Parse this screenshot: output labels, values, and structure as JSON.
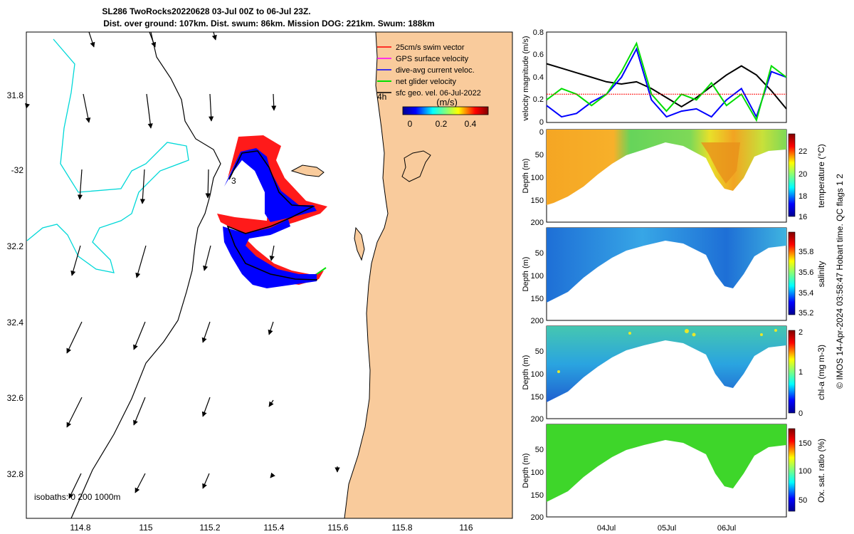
{
  "figure": {
    "title_line1": "SL286 TwoRocks20220628 03-Jul 00Z to 06-Jul 23Z.",
    "title_line2": "Dist. over ground: 107km. Dist. swum: 86km. Mission DOG: 221km. Swum: 188km",
    "footer": "© IMOS 14-Apr-2024 03:58:47 Hobart time. QC flags 1  2"
  },
  "map": {
    "lon_ticks": [
      "114.8",
      "115",
      "115.2",
      "115.4",
      "115.6",
      "115.8",
      "116"
    ],
    "lat_ticks": [
      "31.8",
      "-32",
      "32.2",
      "32.4",
      "32.6",
      "32.8"
    ],
    "isobaths_label": "isobaths: 0   200  1000m",
    "label_3": "3",
    "label_4h": "4h",
    "legend": [
      {
        "label": "25cm/s swim vector",
        "color": "#ff0000"
      },
      {
        "label": "GPS surface velocity",
        "color": "#ff00ff"
      },
      {
        "label": "dive-avg current veloc.",
        "color": "#0000ff"
      },
      {
        "label": "net glider velocity",
        "color": "#00e000"
      },
      {
        "label": "sfc geo. vel. 06-Jul-2022",
        "color": "#000000"
      }
    ],
    "colorbar_unit": "(m/s)",
    "colorbar_ticks": [
      "0",
      "0.2",
      "0.4"
    ]
  },
  "chart_data": [
    {
      "type": "line",
      "ylabel": "velocity magnitude (m/s)",
      "ylim": [
        0,
        0.8
      ],
      "yticks": [
        "0",
        "0.2",
        "0.4",
        "0.6",
        "0.8"
      ],
      "series": [
        {
          "color": "#000000",
          "values": [
            0.52,
            0.48,
            0.44,
            0.4,
            0.36,
            0.34,
            0.36,
            0.3,
            0.22,
            0.14,
            0.22,
            0.32,
            0.42,
            0.5,
            0.42,
            0.28,
            0.12
          ]
        },
        {
          "color": "#0000ff",
          "values": [
            0.15,
            0.05,
            0.08,
            0.18,
            0.25,
            0.4,
            0.65,
            0.2,
            0.05,
            0.1,
            0.12,
            0.05,
            0.2,
            0.3,
            0.05,
            0.45,
            0.4
          ]
        },
        {
          "color": "#00dd00",
          "values": [
            0.2,
            0.3,
            0.25,
            0.15,
            0.25,
            0.45,
            0.7,
            0.25,
            0.1,
            0.25,
            0.2,
            0.35,
            0.15,
            0.25,
            0.02,
            0.5,
            0.4
          ]
        },
        {
          "color": "#ff0000",
          "values": [
            0.25,
            0.25,
            0.25,
            0.25,
            0.25,
            0.25,
            0.25,
            0.25,
            0.25,
            0.25,
            0.25,
            0.25,
            0.25,
            0.25,
            0.25,
            0.25,
            0.25
          ]
        }
      ]
    },
    {
      "type": "heatmap",
      "ylabel": "Depth (m)",
      "yticks": [
        "0",
        "50",
        "100",
        "150",
        "200"
      ],
      "clabel": "temperature (°C)",
      "cticks": [
        "16",
        "18",
        "20",
        "22"
      ]
    },
    {
      "type": "heatmap",
      "ylabel": "Depth (m)",
      "yticks": [
        "50",
        "100",
        "150",
        "200"
      ],
      "clabel": "salinity",
      "cticks": [
        "35.2",
        "35.4",
        "35.6",
        "35.8"
      ]
    },
    {
      "type": "heatmap",
      "ylabel": "Depth (m)",
      "yticks": [
        "50",
        "100",
        "150",
        "200"
      ],
      "clabel": "chl-a (mg m-3)",
      "cticks": [
        "0",
        "1",
        "2"
      ]
    },
    {
      "type": "heatmap",
      "ylabel": "Depth (m)",
      "yticks": [
        "50",
        "100",
        "150",
        "200"
      ],
      "xticks": [
        "04Jul",
        "05Jul",
        "06Jul"
      ],
      "clabel": "Ox. sat. ratio (%)",
      "cticks": [
        "50",
        "100",
        "150"
      ]
    }
  ]
}
